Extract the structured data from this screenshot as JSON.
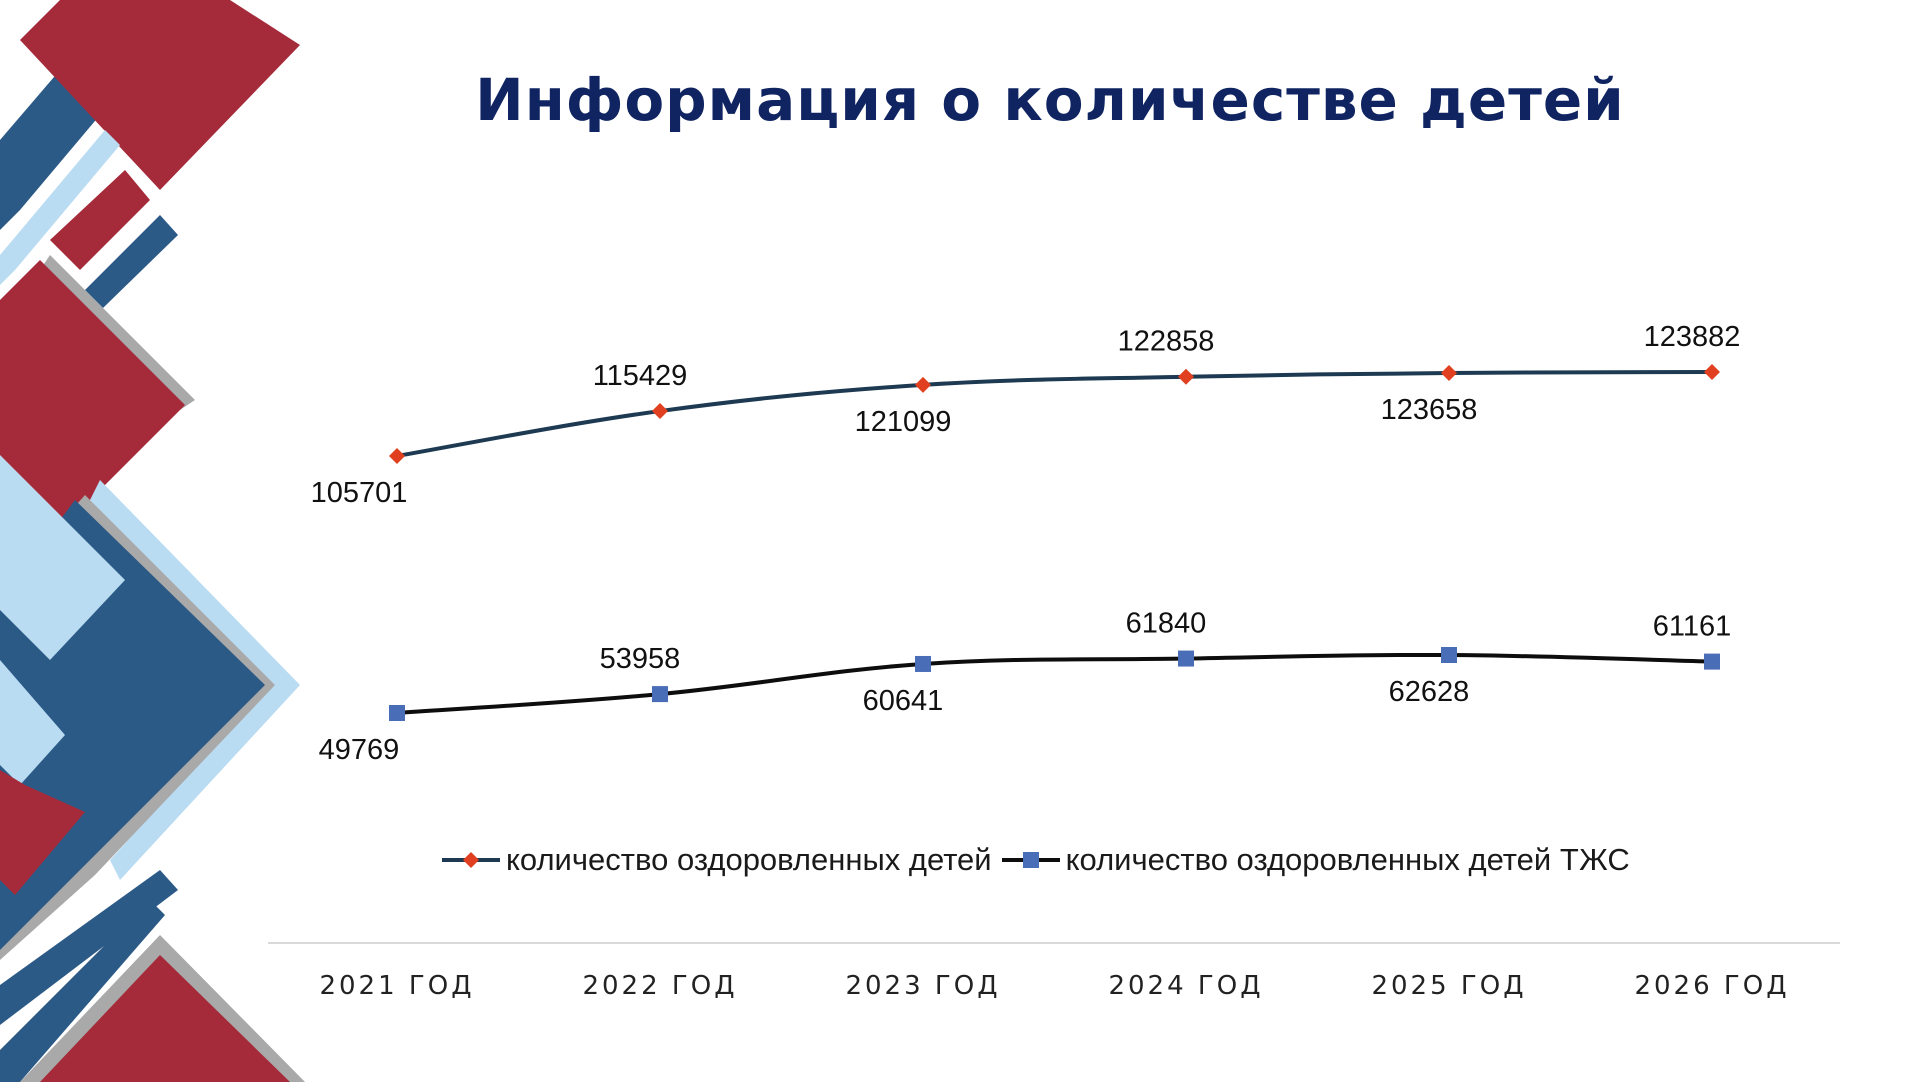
{
  "slide": {
    "title": "Информация о количестве детей"
  },
  "colors": {
    "title": "#0f2461",
    "series1_line": "#1e3a52",
    "series1_marker": "#e0401f",
    "series2_line": "#0d0d0d",
    "series2_marker": "#4a6db7",
    "decor_red": "#a52a3a",
    "decor_blue": "#2c5a87",
    "decor_light": "#b9dcf2",
    "decor_gray": "#a9a9a9"
  },
  "chart_data": {
    "type": "line",
    "categories": [
      "2021 ГОД",
      "2022 ГОД",
      "2023 ГОД",
      "2024 ГОД",
      "2025 ГОД",
      "2026 ГОД"
    ],
    "series": [
      {
        "name": "количество оздоровленных детей",
        "values": [
          105701,
          115429,
          121099,
          122858,
          123658,
          123882
        ],
        "labels": [
          "105701",
          "115429",
          "121099",
          "122858",
          "123658",
          "123882"
        ],
        "marker": "diamond-icon",
        "label_side": [
          "below",
          "above",
          "below",
          "above",
          "below",
          "above"
        ]
      },
      {
        "name": "количество оздоровленных детей ТЖС",
        "values": [
          49769,
          53958,
          60641,
          61840,
          62628,
          61161
        ],
        "labels": [
          "49769",
          "53958",
          "60641",
          "61840",
          "62628",
          "61161"
        ],
        "marker": "square-icon",
        "label_side": [
          "below",
          "above",
          "below",
          "above",
          "below",
          "above"
        ]
      }
    ],
    "legend_position": "bottom",
    "grid": false,
    "data_labels": true
  }
}
